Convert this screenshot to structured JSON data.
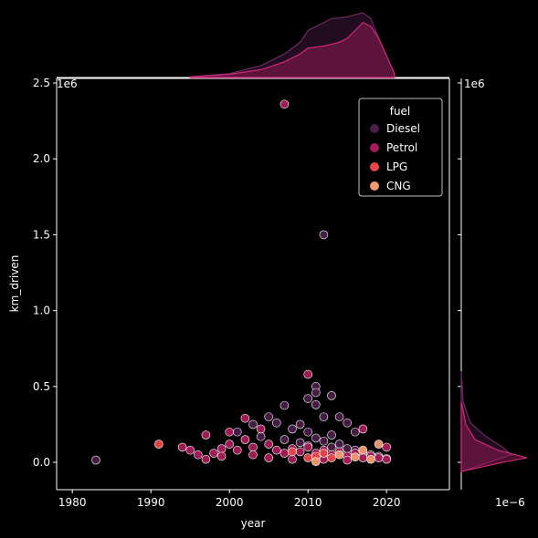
{
  "chart_data": {
    "type": "scatter",
    "xlabel": "year",
    "ylabel": "km_driven",
    "y_offset_label": "1e6",
    "xlim": [
      1978,
      2028
    ],
    "ylim": [
      -180000,
      2530000
    ],
    "x_ticks": [
      1980,
      1990,
      2000,
      2010,
      2020
    ],
    "y_ticks": [
      0,
      500000,
      1000000,
      1500000,
      2000000,
      2500000
    ],
    "y_tick_labels": [
      "0.0",
      "0.5",
      "1.0",
      "1.5",
      "2.0",
      "2.5"
    ],
    "marginal_x": {
      "type": "kde",
      "series": [
        {
          "name": "Diesel",
          "x": [
            1995,
            2000,
            2004,
            2007,
            2009,
            2010,
            2011,
            2012,
            2013,
            2014,
            2015,
            2016,
            2017,
            2018,
            2019,
            2021
          ],
          "density": [
            0.002,
            0.01,
            0.03,
            0.06,
            0.09,
            0.12,
            0.13,
            0.14,
            0.15,
            0.152,
            0.155,
            0.16,
            0.165,
            0.15,
            0.1,
            0.01
          ]
        },
        {
          "name": "Petrol",
          "x": [
            1995,
            2000,
            2004,
            2007,
            2009,
            2010,
            2012,
            2014,
            2015,
            2016,
            2017,
            2018,
            2019,
            2021
          ],
          "density": [
            0.002,
            0.008,
            0.02,
            0.04,
            0.06,
            0.075,
            0.08,
            0.09,
            0.1,
            0.12,
            0.14,
            0.13,
            0.1,
            0.01
          ]
        }
      ]
    },
    "marginal_y": {
      "type": "kde",
      "x_offset_label": "1e−6"
    },
    "legend": {
      "title": "fuel",
      "position": "top-right",
      "entries": [
        {
          "label": "Diesel",
          "color": "#4b1d48"
        },
        {
          "label": "Petrol",
          "color": "#a61c5b"
        },
        {
          "label": "LPG",
          "color": "#ea4646"
        },
        {
          "label": "CNG",
          "color": "#f39a71"
        }
      ]
    },
    "series": [
      {
        "name": "Diesel",
        "color": "#4b1d48",
        "points": [
          [
            1983,
            15000
          ],
          [
            2007,
            375000
          ],
          [
            2011,
            500000
          ],
          [
            2011,
            460000
          ],
          [
            2012,
            1500000
          ],
          [
            2013,
            440000
          ],
          [
            2009,
            250000
          ],
          [
            2010,
            420000
          ],
          [
            2011,
            380000
          ],
          [
            2012,
            300000
          ],
          [
            2010,
            200000
          ],
          [
            2014,
            300000
          ],
          [
            2015,
            260000
          ],
          [
            2016,
            200000
          ],
          [
            2013,
            180000
          ],
          [
            2008,
            220000
          ],
          [
            2006,
            260000
          ],
          [
            2005,
            300000
          ],
          [
            2003,
            250000
          ],
          [
            2011,
            160000
          ],
          [
            2012,
            140000
          ],
          [
            2014,
            120000
          ],
          [
            2015,
            90000
          ],
          [
            2016,
            80000
          ],
          [
            2017,
            60000
          ],
          [
            2018,
            50000
          ],
          [
            2019,
            40000
          ],
          [
            2020,
            25000
          ],
          [
            2009,
            130000
          ],
          [
            2010,
            110000
          ],
          [
            2013,
            100000
          ],
          [
            2007,
            150000
          ],
          [
            2004,
            170000
          ],
          [
            2001,
            200000
          ]
        ]
      },
      {
        "name": "Petrol",
        "color": "#a61c5b",
        "points": [
          [
            2007,
            2360000
          ],
          [
            2010,
            580000
          ],
          [
            1994,
            100000
          ],
          [
            1995,
            80000
          ],
          [
            1996,
            50000
          ],
          [
            1997,
            180000
          ],
          [
            1998,
            60000
          ],
          [
            1999,
            90000
          ],
          [
            2000,
            200000
          ],
          [
            2000,
            120000
          ],
          [
            2001,
            80000
          ],
          [
            2002,
            290000
          ],
          [
            2002,
            150000
          ],
          [
            2003,
            100000
          ],
          [
            2004,
            220000
          ],
          [
            2005,
            120000
          ],
          [
            2006,
            80000
          ],
          [
            2007,
            60000
          ],
          [
            2008,
            90000
          ],
          [
            2009,
            70000
          ],
          [
            2010,
            100000
          ],
          [
            2011,
            60000
          ],
          [
            2012,
            80000
          ],
          [
            2013,
            50000
          ],
          [
            2014,
            70000
          ],
          [
            2015,
            40000
          ],
          [
            2016,
            60000
          ],
          [
            2017,
            220000
          ],
          [
            2017,
            30000
          ],
          [
            2018,
            40000
          ],
          [
            2019,
            30000
          ],
          [
            2020,
            100000
          ],
          [
            2020,
            20000
          ],
          [
            1997,
            20000
          ],
          [
            1999,
            40000
          ],
          [
            2005,
            30000
          ],
          [
            2003,
            50000
          ],
          [
            2008,
            20000
          ],
          [
            2012,
            20000
          ],
          [
            2015,
            15000
          ]
        ]
      },
      {
        "name": "LPG",
        "color": "#ea4646",
        "points": [
          [
            1991,
            120000
          ],
          [
            2011,
            40000
          ],
          [
            2008,
            70000
          ],
          [
            2012,
            60000
          ],
          [
            2010,
            30000
          ],
          [
            2013,
            30000
          ]
        ]
      },
      {
        "name": "CNG",
        "color": "#f39a71",
        "points": [
          [
            2011,
            5000
          ],
          [
            2019,
            120000
          ],
          [
            2014,
            50000
          ],
          [
            2016,
            35000
          ],
          [
            2017,
            80000
          ],
          [
            2018,
            20000
          ]
        ]
      }
    ]
  }
}
